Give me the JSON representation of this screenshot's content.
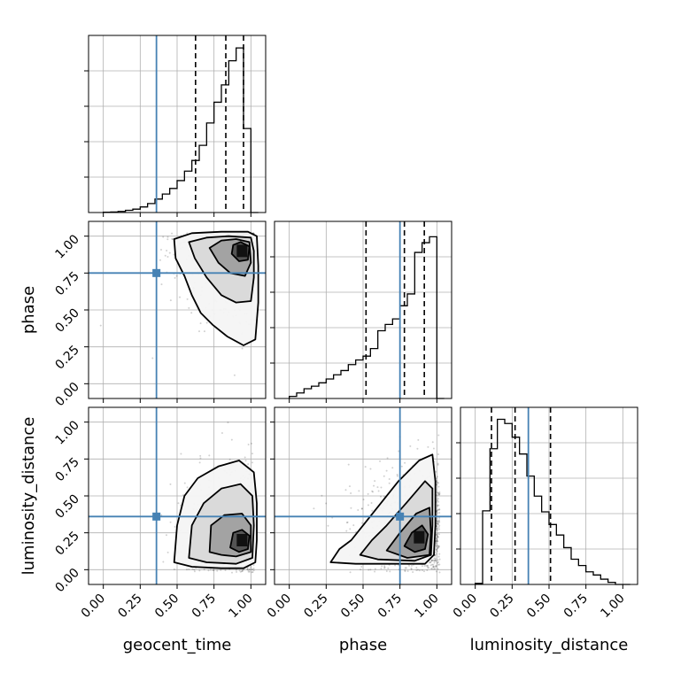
{
  "chart_data": {
    "type": "corner",
    "parameters": [
      "geocent_time",
      "phase",
      "luminosity_distance"
    ],
    "axis_labels": {
      "x": [
        "geocent_time",
        "phase",
        "luminosity_distance"
      ],
      "y": [
        "",
        "phase",
        "luminosity_distance"
      ]
    },
    "tick_labels": [
      "0.00",
      "0.25",
      "0.50",
      "0.75",
      "1.00"
    ],
    "axis_range": [
      -0.1,
      1.1
    ],
    "grid": true,
    "colors": {
      "truth": "#4682b4",
      "histogram": "#000000",
      "contour": "#000000",
      "scatter": "#000000",
      "grid": "#b0b0b0",
      "spine": "#000000"
    },
    "truths": {
      "geocent_time": 0.36,
      "phase": 0.75,
      "luminosity_distance": 0.36
    },
    "histograms": [
      {
        "param": "geocent_time",
        "bin_edges": [
          0.0,
          0.05,
          0.1,
          0.15,
          0.2,
          0.25,
          0.3,
          0.35,
          0.4,
          0.45,
          0.5,
          0.55,
          0.6,
          0.65,
          0.7,
          0.75,
          0.8,
          0.85,
          0.9,
          0.95,
          1.0,
          1.05
        ],
        "counts": [
          1,
          2,
          4,
          8,
          12,
          20,
          32,
          48,
          66,
          86,
          114,
          148,
          186,
          240,
          320,
          394,
          456,
          542,
          588,
          300,
          0
        ],
        "ymax": 620,
        "quantiles": [
          0.625,
          0.83,
          0.95
        ]
      },
      {
        "param": "phase",
        "bin_edges": [
          0.0,
          0.05,
          0.1,
          0.15,
          0.2,
          0.25,
          0.3,
          0.35,
          0.4,
          0.45,
          0.5,
          0.55,
          0.6,
          0.65,
          0.7,
          0.75,
          0.8,
          0.85,
          0.9,
          0.95,
          1.0,
          1.05
        ],
        "counts": [
          10,
          26,
          46,
          58,
          74,
          92,
          112,
          132,
          160,
          182,
          200,
          236,
          320,
          350,
          376,
          438,
          494,
          690,
          736,
          764,
          0
        ],
        "ymax": 820,
        "quantiles": [
          0.52,
          0.78,
          0.915
        ]
      },
      {
        "param": "luminosity_distance",
        "bin_edges": [
          0.0,
          0.05,
          0.1,
          0.15,
          0.2,
          0.25,
          0.3,
          0.35,
          0.4,
          0.45,
          0.5,
          0.55,
          0.6,
          0.65,
          0.7,
          0.75,
          0.8,
          0.85,
          0.9,
          0.95,
          1.0,
          1.05
        ],
        "counts": [
          2,
          140,
          258,
          314,
          306,
          280,
          248,
          206,
          168,
          138,
          114,
          94,
          70,
          48,
          36,
          24,
          18,
          10,
          4,
          0,
          0
        ],
        "ymax": 330,
        "quantiles": [
          0.11,
          0.27,
          0.51
        ]
      }
    ],
    "density_2d": [
      {
        "x": "geocent_time",
        "y": "phase",
        "mode": [
          0.94,
          0.9
        ],
        "spread": [
          0.14,
          0.13
        ],
        "contour_levels": [
          [
            [
              0.48,
              0.98
            ],
            [
              0.49,
              0.85
            ],
            [
              0.55,
              0.73
            ],
            [
              0.6,
              0.6
            ],
            [
              0.66,
              0.48
            ],
            [
              0.74,
              0.4
            ],
            [
              0.84,
              0.32
            ],
            [
              0.95,
              0.26
            ],
            [
              1.03,
              0.3
            ],
            [
              1.05,
              0.55
            ],
            [
              1.05,
              0.8
            ],
            [
              1.04,
              1.0
            ],
            [
              0.98,
              1.03
            ],
            [
              0.8,
              1.03
            ],
            [
              0.6,
              1.02
            ]
          ],
          [
            [
              0.58,
              0.96
            ],
            [
              0.62,
              0.85
            ],
            [
              0.7,
              0.72
            ],
            [
              0.8,
              0.6
            ],
            [
              0.9,
              0.55
            ],
            [
              1.0,
              0.56
            ],
            [
              1.02,
              0.72
            ],
            [
              1.02,
              0.9
            ],
            [
              1.0,
              0.99
            ],
            [
              0.85,
              1.0
            ],
            [
              0.7,
              0.99
            ]
          ],
          [
            [
              0.72,
              0.92
            ],
            [
              0.78,
              0.82
            ],
            [
              0.86,
              0.75
            ],
            [
              0.96,
              0.73
            ],
            [
              1.0,
              0.82
            ],
            [
              0.99,
              0.96
            ],
            [
              0.9,
              0.98
            ],
            [
              0.8,
              0.97
            ]
          ],
          [
            [
              0.87,
              0.88
            ],
            [
              0.92,
              0.83
            ],
            [
              0.98,
              0.84
            ],
            [
              0.99,
              0.93
            ],
            [
              0.93,
              0.96
            ],
            [
              0.88,
              0.94
            ]
          ]
        ]
      },
      {
        "x": "geocent_time",
        "y": "luminosity_distance",
        "mode": [
          0.94,
          0.2
        ],
        "spread": [
          0.13,
          0.15
        ],
        "contour_levels": [
          [
            [
              0.48,
              0.05
            ],
            [
              0.5,
              0.3
            ],
            [
              0.55,
              0.5
            ],
            [
              0.64,
              0.62
            ],
            [
              0.78,
              0.7
            ],
            [
              0.92,
              0.74
            ],
            [
              1.02,
              0.66
            ],
            [
              1.04,
              0.45
            ],
            [
              1.04,
              0.2
            ],
            [
              1.03,
              0.05
            ],
            [
              0.95,
              0.01
            ],
            [
              0.8,
              0.01
            ],
            [
              0.6,
              0.02
            ]
          ],
          [
            [
              0.58,
              0.08
            ],
            [
              0.6,
              0.3
            ],
            [
              0.68,
              0.45
            ],
            [
              0.8,
              0.55
            ],
            [
              0.93,
              0.58
            ],
            [
              1.01,
              0.5
            ],
            [
              1.02,
              0.3
            ],
            [
              1.01,
              0.08
            ],
            [
              0.9,
              0.04
            ],
            [
              0.7,
              0.05
            ]
          ],
          [
            [
              0.72,
              0.12
            ],
            [
              0.73,
              0.3
            ],
            [
              0.82,
              0.37
            ],
            [
              0.94,
              0.38
            ],
            [
              1.0,
              0.3
            ],
            [
              1.0,
              0.12
            ],
            [
              0.9,
              0.09
            ],
            [
              0.8,
              0.1
            ]
          ],
          [
            [
              0.86,
              0.15
            ],
            [
              0.88,
              0.25
            ],
            [
              0.94,
              0.27
            ],
            [
              0.99,
              0.23
            ],
            [
              0.98,
              0.14
            ],
            [
              0.92,
              0.12
            ]
          ]
        ]
      },
      {
        "x": "phase",
        "y": "luminosity_distance",
        "mode": [
          0.88,
          0.22
        ],
        "spread": [
          0.14,
          0.15
        ],
        "contour_levels": [
          [
            [
              0.28,
              0.05
            ],
            [
              0.34,
              0.14
            ],
            [
              0.42,
              0.2
            ],
            [
              0.5,
              0.3
            ],
            [
              0.62,
              0.45
            ],
            [
              0.74,
              0.6
            ],
            [
              0.88,
              0.74
            ],
            [
              0.97,
              0.78
            ],
            [
              0.99,
              0.6
            ],
            [
              0.99,
              0.3
            ],
            [
              0.98,
              0.1
            ],
            [
              0.92,
              0.04
            ],
            [
              0.7,
              0.04
            ],
            [
              0.45,
              0.04
            ]
          ],
          [
            [
              0.48,
              0.1
            ],
            [
              0.56,
              0.2
            ],
            [
              0.66,
              0.3
            ],
            [
              0.8,
              0.46
            ],
            [
              0.92,
              0.6
            ],
            [
              0.97,
              0.55
            ],
            [
              0.97,
              0.3
            ],
            [
              0.96,
              0.1
            ],
            [
              0.85,
              0.06
            ],
            [
              0.6,
              0.07
            ]
          ],
          [
            [
              0.66,
              0.13
            ],
            [
              0.75,
              0.25
            ],
            [
              0.86,
              0.38
            ],
            [
              0.95,
              0.42
            ],
            [
              0.96,
              0.25
            ],
            [
              0.95,
              0.1
            ],
            [
              0.8,
              0.08
            ]
          ],
          [
            [
              0.78,
              0.16
            ],
            [
              0.83,
              0.25
            ],
            [
              0.9,
              0.3
            ],
            [
              0.94,
              0.24
            ],
            [
              0.92,
              0.14
            ],
            [
              0.85,
              0.12
            ]
          ]
        ]
      }
    ]
  }
}
